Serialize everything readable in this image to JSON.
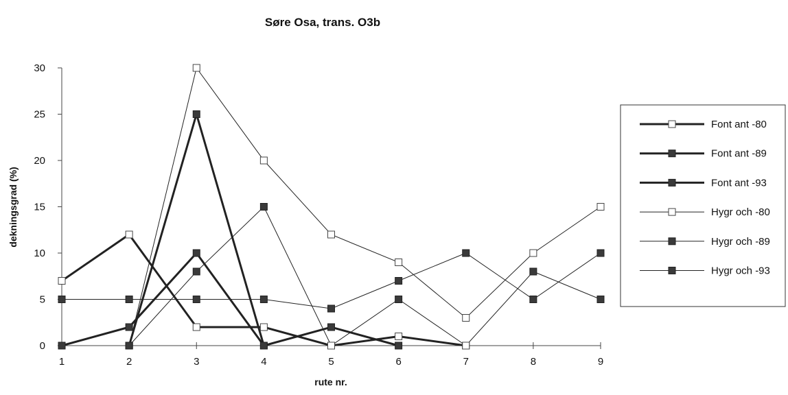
{
  "chart_data": {
    "type": "line",
    "title": "Søre Osa, trans. O3b",
    "xlabel": "rute nr.",
    "ylabel": "dekningsgrad (%)",
    "x": [
      1,
      2,
      3,
      4,
      5,
      6,
      7,
      8,
      9
    ],
    "xlim": [
      1,
      9
    ],
    "ylim": [
      0,
      30
    ],
    "yticks": [
      0,
      5,
      10,
      15,
      20,
      25,
      30
    ],
    "grid": false,
    "legend_position": "right",
    "series": [
      {
        "name": "Font ant -80",
        "style": "thick",
        "marker": "hollow",
        "values": [
          7,
          12,
          2,
          2,
          0,
          1,
          0,
          null,
          null
        ]
      },
      {
        "name": "Font ant -89",
        "style": "thick",
        "marker": "filled",
        "values": [
          0,
          2,
          10,
          0,
          2,
          0,
          null,
          null,
          null
        ]
      },
      {
        "name": "Font ant -93",
        "style": "thick",
        "marker": "filled",
        "values": [
          null,
          0,
          25,
          0,
          null,
          null,
          null,
          null,
          null
        ]
      },
      {
        "name": "Hygr och -80",
        "style": "thin",
        "marker": "hollow",
        "values": [
          null,
          0,
          30,
          20,
          12,
          9,
          3,
          10,
          15
        ]
      },
      {
        "name": "Hygr och -89",
        "style": "thin",
        "marker": "filled",
        "values": [
          null,
          0,
          8,
          15,
          0,
          5,
          0,
          8,
          5
        ]
      },
      {
        "name": "Hygr och -93",
        "style": "thin",
        "marker": "filled",
        "values": [
          5,
          5,
          5,
          5,
          4,
          7,
          10,
          5,
          10
        ]
      }
    ],
    "colors": {
      "line": "#222222",
      "marker_fill": "#3a3a3a",
      "hollow_fill": "#ffffff"
    }
  }
}
